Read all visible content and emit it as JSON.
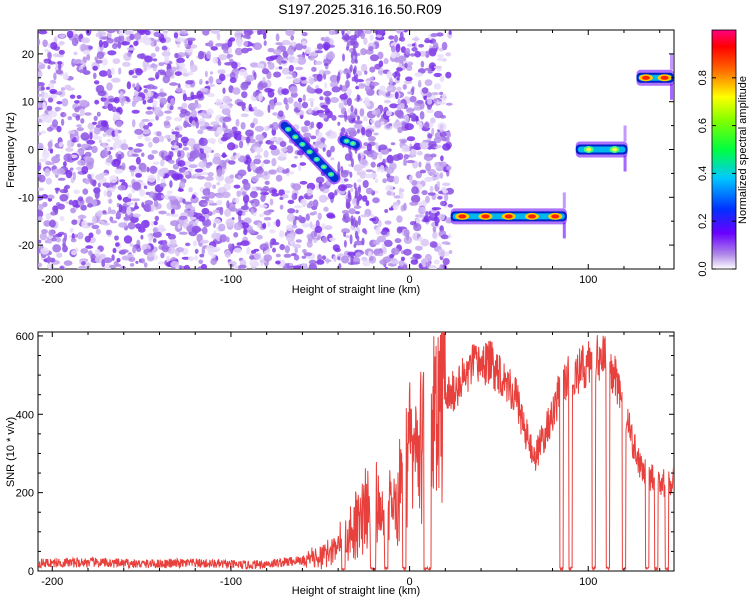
{
  "title": "S197.2025.316.16.50.R09",
  "chart_data": [
    {
      "type": "heatmap",
      "xlabel": "Height of straight line (km)",
      "ylabel": "Frequency (Hz)",
      "xlim": [
        -208,
        148
      ],
      "ylim": [
        -25,
        25
      ],
      "xticks": [
        -200,
        -100,
        0,
        100
      ],
      "yticks": [
        -20,
        -10,
        0,
        10,
        20
      ],
      "grid": false,
      "noise_region": {
        "x": [
          -208,
          23
        ],
        "amplitude": 0.15
      },
      "tracks": [
        {
          "x": [
            -70,
            -42
          ],
          "y": [
            5,
            -6
          ],
          "amplitude": 0.35
        },
        {
          "x": [
            -37,
            -30
          ],
          "y": [
            2,
            1
          ],
          "amplitude": 0.35
        },
        {
          "x": [
            23,
            88
          ],
          "y": [
            -14,
            -14
          ],
          "amplitude": 0.95
        },
        {
          "x": [
            93,
            122
          ],
          "y": [
            0,
            0
          ],
          "amplitude": 0.6
        },
        {
          "x": [
            127,
            148
          ],
          "y": [
            15,
            15
          ],
          "amplitude": 0.95
        }
      ],
      "colorbar": {
        "label": "Normalized spectral amplitude",
        "range": [
          0,
          1
        ],
        "ticks": [
          0.0,
          0.2,
          0.4,
          0.6,
          0.8
        ],
        "tick_labels": [
          "0.0",
          "0.2",
          "0.4",
          "0.6",
          "0.8"
        ]
      }
    },
    {
      "type": "line",
      "xlabel": "Height of straight line (km)",
      "ylabel": "SNR (10 * v/v)",
      "xlim": [
        -208,
        148
      ],
      "ylim": [
        0,
        610
      ],
      "xticks": [
        -200,
        -100,
        0,
        100
      ],
      "yticks": [
        0,
        200,
        400,
        600
      ],
      "grid": false,
      "color": "#e8403c",
      "x": [
        -208,
        -180,
        -150,
        -120,
        -90,
        -75,
        -65,
        -55,
        -45,
        -40,
        -35,
        -30,
        -25,
        -20,
        -15,
        -10,
        -5,
        0,
        5,
        10,
        15,
        20,
        25,
        30,
        35,
        40,
        45,
        50,
        55,
        60,
        65,
        70,
        75,
        80,
        85,
        90,
        95,
        100,
        105,
        110,
        115,
        120,
        125,
        130,
        135,
        140,
        145,
        148
      ],
      "y": [
        20,
        22,
        18,
        20,
        15,
        20,
        25,
        30,
        45,
        60,
        90,
        120,
        160,
        190,
        140,
        170,
        200,
        300,
        300,
        360,
        420,
        440,
        460,
        490,
        520,
        530,
        530,
        510,
        480,
        440,
        350,
        290,
        340,
        400,
        470,
        500,
        510,
        530,
        550,
        540,
        500,
        420,
        320,
        260,
        240,
        230,
        220,
        230
      ],
      "dropouts": [
        [
          -38,
          -36
        ],
        [
          -22,
          -19
        ],
        [
          -14,
          -12
        ],
        [
          -4,
          -2
        ],
        [
          8,
          12
        ],
        [
          84,
          86
        ],
        [
          89,
          91
        ],
        [
          102,
          104
        ],
        [
          110,
          112
        ],
        [
          119,
          121
        ],
        [
          132,
          134
        ],
        [
          137,
          139
        ],
        [
          143,
          145
        ]
      ]
    }
  ]
}
